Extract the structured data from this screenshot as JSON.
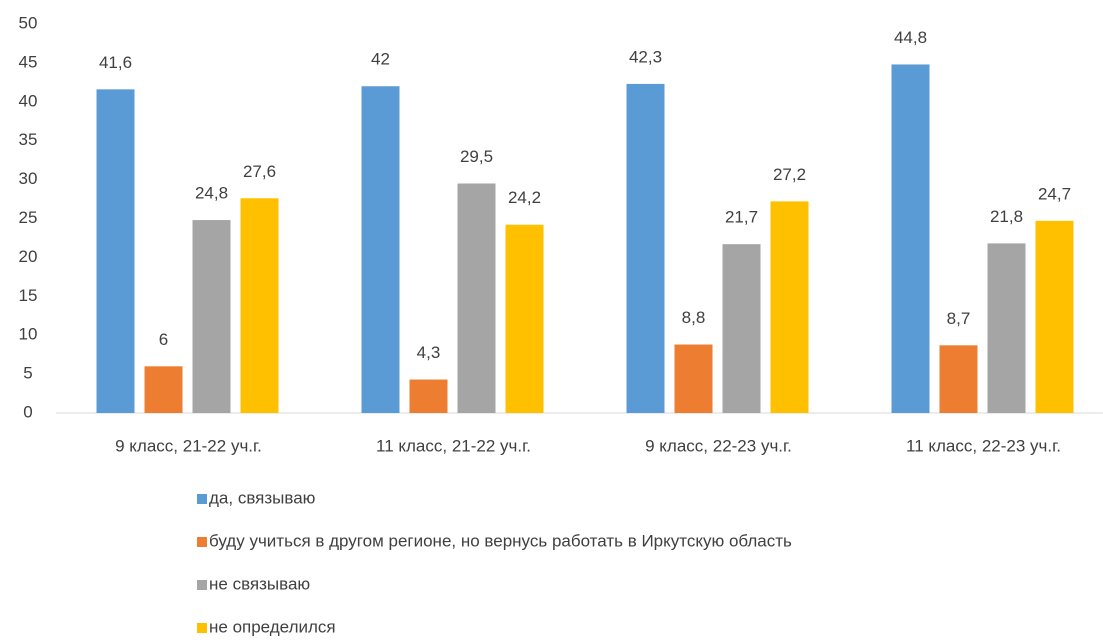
{
  "chart_data": {
    "type": "bar",
    "categories": [
      "9 класс, 21-22 уч.г.",
      "11 класс, 21-22 уч.г.",
      "9 класс, 22-23 уч.г.",
      "11 класс, 22-23 уч.г."
    ],
    "series": [
      {
        "name": "да, связываю",
        "color": "#5b9bd5",
        "values": [
          41.6,
          42,
          42.3,
          44.8
        ],
        "value_labels": [
          "41,6",
          "42",
          "42,3",
          "44,8"
        ]
      },
      {
        "name": "буду учиться в другом регионе, но вернусь работать в Иркутскую область",
        "color": "#ed7d31",
        "values": [
          6,
          4.3,
          8.8,
          8.7
        ],
        "value_labels": [
          "6",
          "4,3",
          "8,8",
          "8,7"
        ]
      },
      {
        "name": "не связываю",
        "color": "#a5a5a5",
        "values": [
          24.8,
          29.5,
          21.7,
          21.8
        ],
        "value_labels": [
          "24,8",
          "29,5",
          "21,7",
          "21,8"
        ]
      },
      {
        "name": "не определился",
        "color": "#ffc000",
        "values": [
          27.6,
          24.2,
          27.2,
          24.7
        ],
        "value_labels": [
          "27,6",
          "24,2",
          "27,2",
          "24,7"
        ]
      }
    ],
    "ylim": [
      0,
      50
    ],
    "yticks": [
      0,
      5,
      10,
      15,
      20,
      25,
      30,
      35,
      40,
      45,
      50
    ],
    "grid": false,
    "legend": "bottom"
  }
}
